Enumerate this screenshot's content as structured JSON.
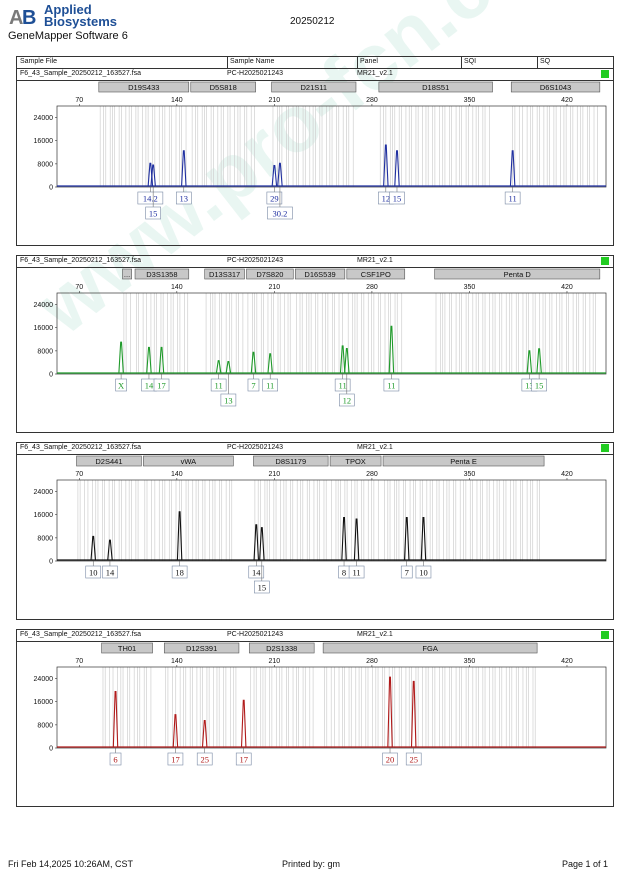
{
  "header": {
    "logo_line1": "Applied",
    "logo_line2": "Biosystems",
    "software": "GeneMapper Software 6",
    "date": "20250212"
  },
  "columns": {
    "sample_file": "Sample File",
    "sample_name": "Sample Name",
    "panel": "Panel",
    "sqi": "SQI",
    "sq": "SQ"
  },
  "sample": {
    "file": "F6_43_Sample_20250212_163527.fsa",
    "name": "PC-H2025021243",
    "panel": "MR21_v2.1"
  },
  "watermark": "www.pro-fcn.cn",
  "panels": [
    {
      "color": "#1f2fa0",
      "loci": [
        {
          "name": "D19S433",
          "from": 84,
          "to": 150
        },
        {
          "name": "D5S818",
          "from": 150,
          "to": 198
        },
        {
          "name": "D21S11",
          "from": 208,
          "to": 270
        },
        {
          "name": "D18S51",
          "from": 285,
          "to": 368
        },
        {
          "name": "D6S1043",
          "from": 380,
          "to": 445
        }
      ],
      "peaks": [
        {
          "x": 121,
          "h": 8200,
          "label": "14.2",
          "row": 1
        },
        {
          "x": 123,
          "h": 7600,
          "label": "15",
          "row": 2
        },
        {
          "x": 145,
          "h": 12500,
          "label": "13",
          "row": 1
        },
        {
          "x": 210,
          "h": 7400,
          "label": "29",
          "row": 1
        },
        {
          "x": 214,
          "h": 8200,
          "label": "30.2",
          "row": 2
        },
        {
          "x": 290,
          "h": 14500,
          "label": "12",
          "row": 1
        },
        {
          "x": 298,
          "h": 12500,
          "label": "15",
          "row": 1
        },
        {
          "x": 381,
          "h": 12500,
          "label": "11",
          "row": 1
        }
      ]
    },
    {
      "color": "#1f9a2a",
      "loci": [
        {
          "name": "...",
          "from": 101,
          "to": 109
        },
        {
          "name": "D3S1358",
          "from": 110,
          "to": 150
        },
        {
          "name": "D13S317",
          "from": 160,
          "to": 190
        },
        {
          "name": "D7S820",
          "from": 190,
          "to": 225
        },
        {
          "name": "D16S539",
          "from": 225,
          "to": 262
        },
        {
          "name": "CSF1PO",
          "from": 262,
          "to": 305
        },
        {
          "name": "Penta D",
          "from": 325,
          "to": 445
        }
      ],
      "peaks": [
        {
          "x": 100,
          "h": 11000,
          "label": "X",
          "row": 1
        },
        {
          "x": 120,
          "h": 9200,
          "label": "14",
          "row": 1
        },
        {
          "x": 129,
          "h": 9200,
          "label": "17",
          "row": 1
        },
        {
          "x": 170,
          "h": 4600,
          "label": "11",
          "row": 1
        },
        {
          "x": 177,
          "h": 4300,
          "label": "13",
          "row": 2
        },
        {
          "x": 195,
          "h": 7500,
          "label": "7",
          "row": 1
        },
        {
          "x": 207,
          "h": 7000,
          "label": "11",
          "row": 1
        },
        {
          "x": 259,
          "h": 9700,
          "label": "11",
          "row": 1
        },
        {
          "x": 262,
          "h": 8800,
          "label": "12",
          "row": 2
        },
        {
          "x": 294,
          "h": 16500,
          "label": "11",
          "row": 1
        },
        {
          "x": 393,
          "h": 8000,
          "label": "13",
          "row": 1
        },
        {
          "x": 400,
          "h": 8700,
          "label": "15",
          "row": 1
        }
      ]
    },
    {
      "color": "#111111",
      "loci": [
        {
          "name": "D2S441",
          "from": 68,
          "to": 116
        },
        {
          "name": "vWA",
          "from": 116,
          "to": 182
        },
        {
          "name": "D8S1179",
          "from": 195,
          "to": 250
        },
        {
          "name": "TPOX",
          "from": 250,
          "to": 288
        },
        {
          "name": "Penta E",
          "from": 288,
          "to": 405
        }
      ],
      "peaks": [
        {
          "x": 80,
          "h": 8500,
          "label": "10",
          "row": 1
        },
        {
          "x": 92,
          "h": 7200,
          "label": "14",
          "row": 1
        },
        {
          "x": 142,
          "h": 17000,
          "label": "18",
          "row": 1
        },
        {
          "x": 197,
          "h": 12500,
          "label": "14",
          "row": 1
        },
        {
          "x": 201,
          "h": 11500,
          "label": "15",
          "row": 2
        },
        {
          "x": 260,
          "h": 15000,
          "label": "8",
          "row": 1
        },
        {
          "x": 269,
          "h": 14500,
          "label": "11",
          "row": 1
        },
        {
          "x": 305,
          "h": 15000,
          "label": "7",
          "row": 1
        },
        {
          "x": 317,
          "h": 15000,
          "label": "10",
          "row": 1
        }
      ]
    },
    {
      "color": "#b01a1a",
      "loci": [
        {
          "name": "TH01",
          "from": 86,
          "to": 124
        },
        {
          "name": "D12S391",
          "from": 131,
          "to": 186
        },
        {
          "name": "D2S1338",
          "from": 192,
          "to": 240
        },
        {
          "name": "FGA",
          "from": 245,
          "to": 400
        }
      ],
      "peaks": [
        {
          "x": 96,
          "h": 19500,
          "label": "6",
          "row": 1
        },
        {
          "x": 139,
          "h": 11500,
          "label": "17",
          "row": 1
        },
        {
          "x": 160,
          "h": 9500,
          "label": "25",
          "row": 1
        },
        {
          "x": 188,
          "h": 16500,
          "label": "17",
          "row": 1
        },
        {
          "x": 293,
          "h": 24500,
          "label": "20",
          "row": 1
        },
        {
          "x": 310,
          "h": 23000,
          "label": "25",
          "row": 1
        }
      ]
    }
  ],
  "axis": {
    "xticks": [
      70,
      140,
      210,
      280,
      350,
      420
    ],
    "yticks": [
      0,
      8000,
      16000,
      24000
    ]
  },
  "footer": {
    "left": "Fri Feb 14,2025 10:26AM, CST",
    "center": "Printed by: gm",
    "right": "Page 1 of 1"
  }
}
